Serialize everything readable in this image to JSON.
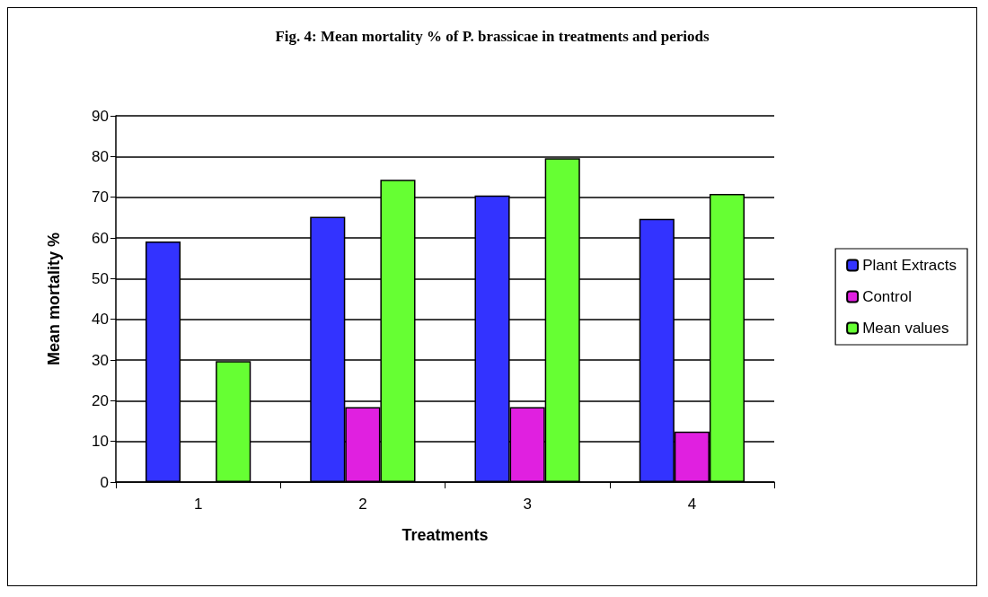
{
  "chart_data": {
    "type": "bar",
    "title": "Fig. 4: Mean mortality % of P. brassicae in treatments and periods",
    "xlabel": "Treatments",
    "ylabel": "Mean mortality %",
    "categories": [
      "1",
      "2",
      "3",
      "4"
    ],
    "series": [
      {
        "name": "Plant Extracts",
        "color": "#3333ff",
        "values": [
          59.1,
          65.2,
          70.4,
          64.7
        ]
      },
      {
        "name": "Control",
        "color": "#e020e0",
        "values": [
          0,
          18.4,
          18.4,
          12.4
        ]
      },
      {
        "name": "Mean values",
        "color": "#66ff33",
        "values": [
          29.7,
          74.3,
          79.6,
          70.8
        ]
      }
    ],
    "ylim": [
      0,
      90
    ],
    "yticks": [
      0,
      10,
      20,
      30,
      40,
      50,
      60,
      70,
      80,
      90
    ],
    "grid": "y",
    "legend": "right"
  }
}
